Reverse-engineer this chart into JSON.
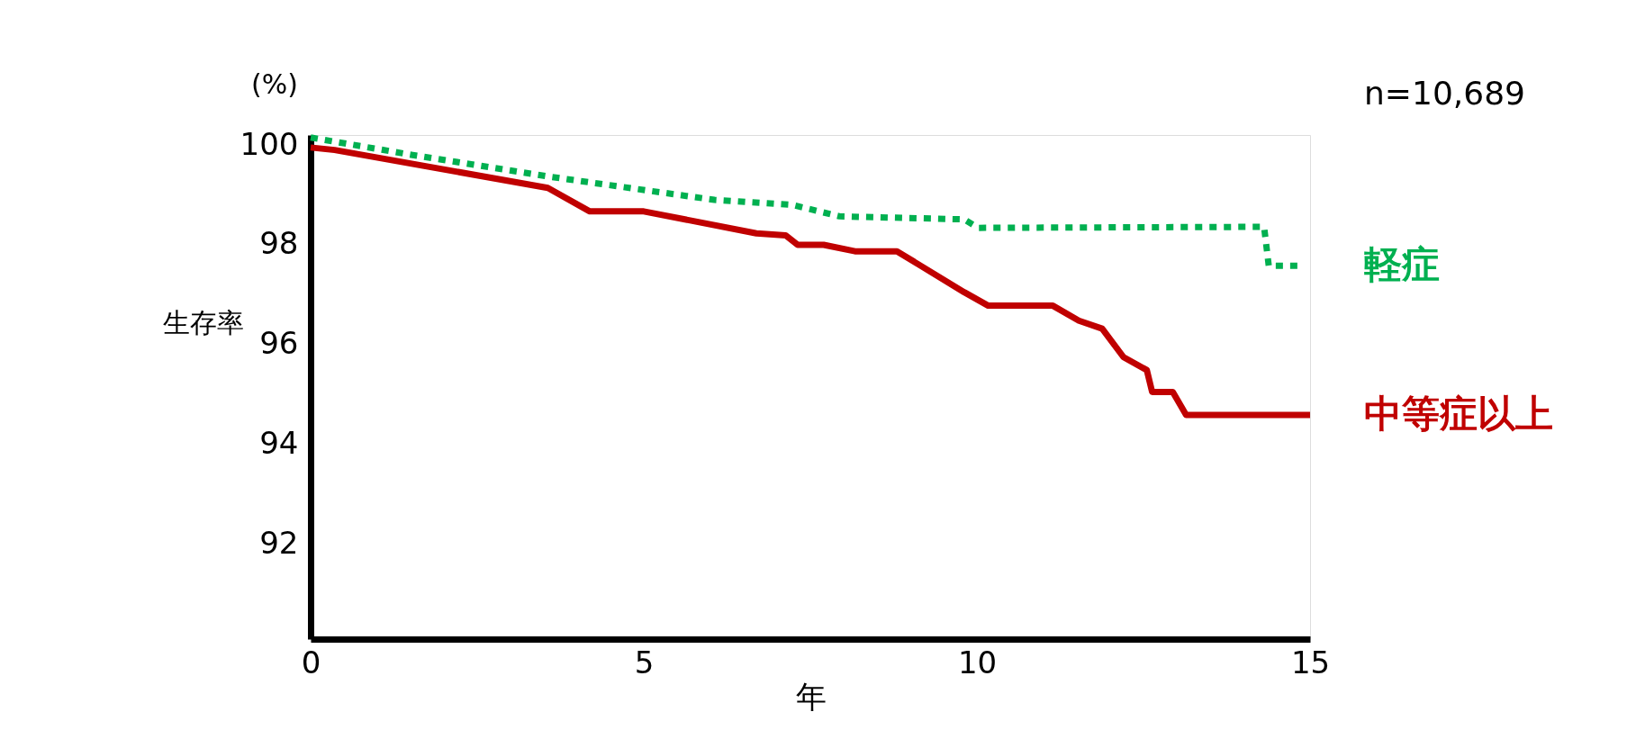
{
  "chart_data": {
    "type": "line",
    "xlabel": "年",
    "ylabel": "生存率",
    "annotations": [
      "(%)",
      "n=10,689"
    ],
    "xlim": [
      0,
      15
    ],
    "xticks": [
      0,
      5,
      10,
      15
    ],
    "ylim": [
      90.1,
      100.2
    ],
    "yticks": [
      92,
      94,
      96,
      98,
      100
    ],
    "grid": false,
    "series": [
      {
        "name": "軽症",
        "color": "#00b050",
        "line_style": "dotted",
        "x": [
          0,
          1.53,
          3.56,
          6.06,
          7.23,
          7.94,
          9.81,
          10.02,
          14.31,
          14.38,
          14.81
        ],
        "values": [
          100.15,
          99.8,
          99.37,
          98.9,
          98.8,
          98.57,
          98.51,
          98.34,
          98.36,
          97.58,
          97.58
        ]
      },
      {
        "name": "中等症以上",
        "color": "#c00000",
        "line_style": "solid",
        "x": [
          0,
          0.36,
          3.56,
          4.19,
          5.0,
          6.69,
          7.13,
          7.31,
          7.7,
          8.17,
          8.8,
          9.81,
          10.17,
          11.14,
          11.53,
          11.88,
          12.2,
          12.55,
          12.63,
          12.94,
          13.14,
          15
        ],
        "values": [
          99.95,
          99.9,
          99.14,
          98.67,
          98.67,
          98.23,
          98.19,
          98.0,
          98.0,
          97.87,
          97.87,
          97.05,
          96.78,
          96.78,
          96.48,
          96.32,
          95.75,
          95.49,
          95.05,
          95.05,
          94.59,
          94.59
        ]
      }
    ]
  }
}
